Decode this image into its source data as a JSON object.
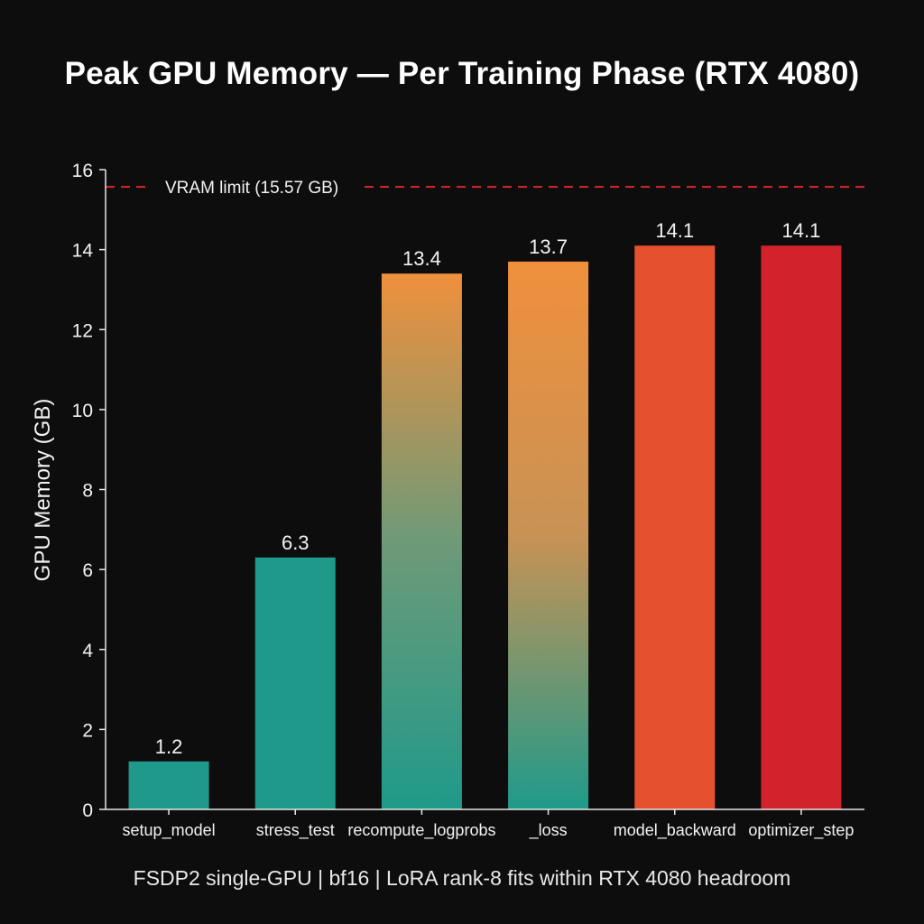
{
  "chart_data": {
    "type": "bar",
    "title": "Peak GPU Memory — Per Training Phase (RTX 4080)",
    "subtitle": "FSDP2 single-GPU | bf16 | LoRA rank-8 fits within RTX 4080 headroom",
    "xlabel": "",
    "ylabel": "GPU Memory (GB)",
    "ylim": [
      0,
      16
    ],
    "yticks": [
      0,
      2,
      4,
      6,
      8,
      10,
      12,
      14,
      16
    ],
    "categories": [
      "setup_model",
      "stress_test",
      "recompute_logprobs",
      "_loss",
      "model_backward",
      "optimizer_step"
    ],
    "values": [
      1.2,
      6.3,
      13.4,
      13.7,
      14.1,
      14.1
    ],
    "value_labels": [
      "1.2",
      "6.3",
      "13.4",
      "13.7",
      "14.1",
      "14.1"
    ],
    "bar_styles": [
      {
        "type": "solid",
        "colors": [
          "#1f9a8a"
        ]
      },
      {
        "type": "solid",
        "colors": [
          "#1f9a8a"
        ]
      },
      {
        "type": "gradient",
        "colors": [
          "#f0903c",
          "#6e9a78",
          "#1f9a8a"
        ]
      },
      {
        "type": "gradient",
        "colors": [
          "#f0903c",
          "#c89255",
          "#1f9a8a"
        ]
      },
      {
        "type": "solid",
        "colors": [
          "#e5502e"
        ]
      },
      {
        "type": "solid",
        "colors": [
          "#d2232d"
        ]
      }
    ],
    "reference_line": {
      "value": 15.57,
      "label": "VRAM limit (15.57 GB)",
      "color": "#c8262d",
      "style": "dashed"
    },
    "grid": false,
    "colors": {
      "background": "#0d0d0d",
      "axis": "#e6e6e6",
      "text": "#f2f2f2"
    }
  }
}
